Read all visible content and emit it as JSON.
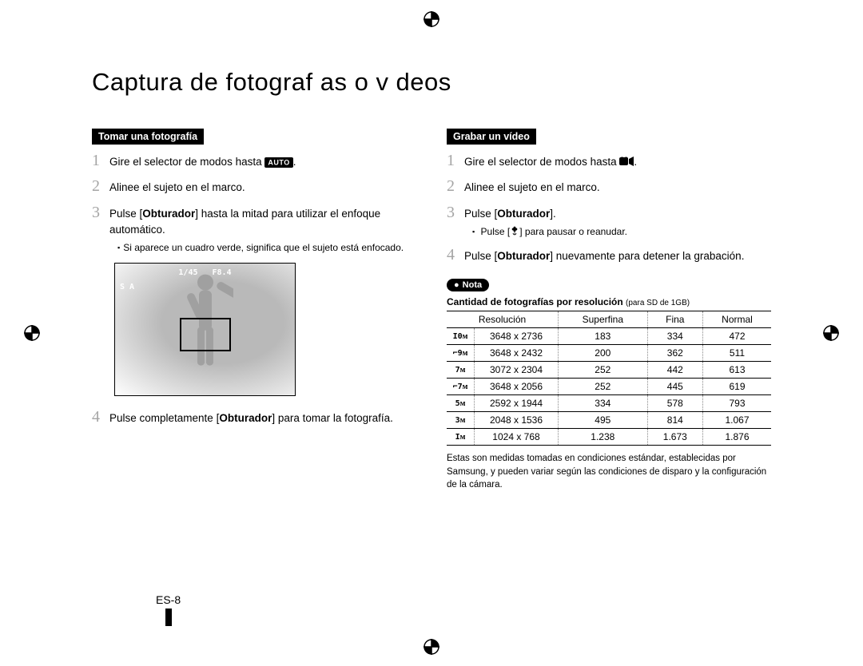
{
  "page_title": "Captura de fotograf as o v deos",
  "page_number": "ES-8",
  "left": {
    "heading": "Tomar una fotografía",
    "auto_badge": "AUTO",
    "steps": [
      {
        "num": "1",
        "text_before": "Gire el selector de modos hasta ",
        "text_after": "."
      },
      {
        "num": "2",
        "text": "Alinee el sujeto en el marco."
      },
      {
        "num": "3",
        "text_before": "Pulse [",
        "bold": "Obturador",
        "text_after": "] hasta la mitad para utilizar el enfoque automático.",
        "sub": "Si aparece un cuadro verde, significa que el sujeto está enfocado."
      },
      {
        "num": "4",
        "text_before": "Pulse completamente [",
        "bold": "Obturador",
        "text_after": "] para tomar la fotografía."
      }
    ],
    "camera_overlay": {
      "shutter": "1/45",
      "aperture": "F8.4",
      "side": "S A"
    }
  },
  "right": {
    "heading": "Grabar un vídeo",
    "steps": [
      {
        "num": "1",
        "text_before": "Gire el selector de modos hasta ",
        "text_after": "."
      },
      {
        "num": "2",
        "text": "Alinee el sujeto en el marco."
      },
      {
        "num": "3",
        "text_before": "Pulse [",
        "bold": "Obturador",
        "text_after": "].",
        "sub_before": "Pulse [",
        "sub_after": "] para pausar o reanudar."
      },
      {
        "num": "4",
        "text_before": "Pulse [",
        "bold": "Obturador",
        "text_after": "] nuevamente para detener la grabación."
      }
    ],
    "nota_label": "Nota",
    "table_caption_strong": "Cantidad de fotografías por resolución ",
    "table_caption_small": "(para SD de 1GB)",
    "columns": [
      "Resolución",
      "Superfina",
      "Fina",
      "Normal"
    ],
    "rows": [
      {
        "icon": "I0ᴍ",
        "res": "3648 x 2736",
        "v1": "183",
        "v2": "334",
        "v3": "472"
      },
      {
        "icon": "⌐9ᴍ",
        "res": "3648 x 2432",
        "v1": "200",
        "v2": "362",
        "v3": "511"
      },
      {
        "icon": "7ᴍ",
        "res": "3072 x 2304",
        "v1": "252",
        "v2": "442",
        "v3": "613"
      },
      {
        "icon": "⌐7ᴍ",
        "res": "3648 x 2056",
        "v1": "252",
        "v2": "445",
        "v3": "619"
      },
      {
        "icon": "5ᴍ",
        "res": "2592 x 1944",
        "v1": "334",
        "v2": "578",
        "v3": "793"
      },
      {
        "icon": "3ᴍ",
        "res": "2048 x 1536",
        "v1": "495",
        "v2": "814",
        "v3": "1.067"
      },
      {
        "icon": "Iᴍ",
        "res": "1024 x 768",
        "v1": "1.238",
        "v2": "1.673",
        "v3": "1.876"
      }
    ],
    "footnote": "Estas son medidas tomadas en condiciones estándar, establecidas por Samsung, y pueden variar según las condiciones de disparo y la configuración de la cámara."
  }
}
